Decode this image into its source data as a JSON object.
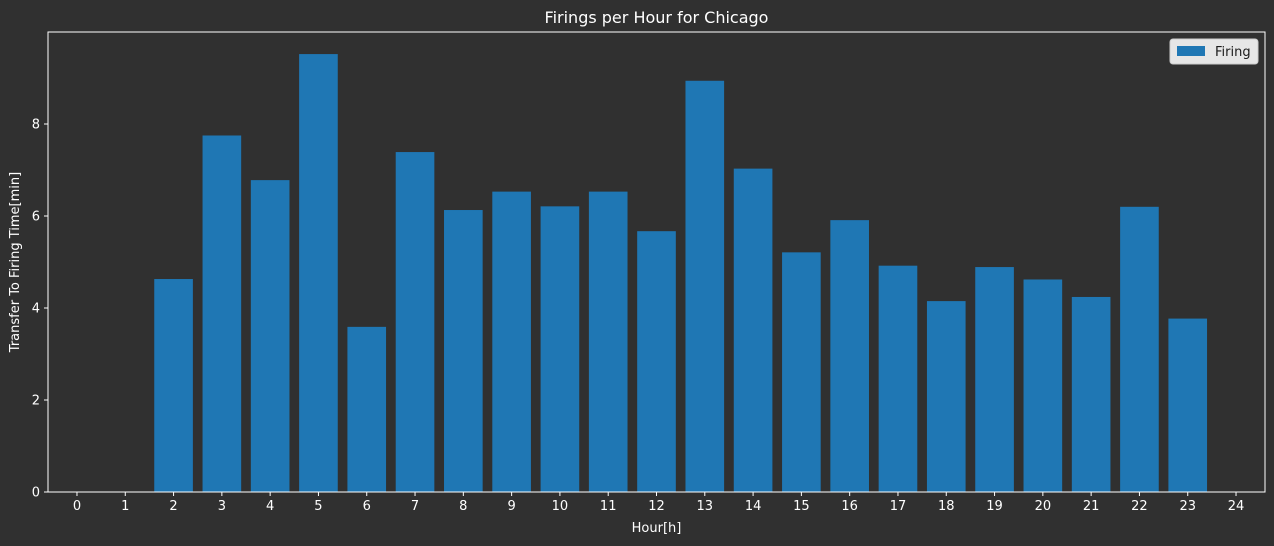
{
  "chart_data": {
    "type": "bar",
    "title": "Firings per Hour for Chicago",
    "xlabel": "Hour[h]",
    "ylabel": "Transfer To Firing Time[min]",
    "xlim": [
      -0.6,
      24.6
    ],
    "ylim": [
      0,
      10
    ],
    "xticks": [
      0,
      1,
      2,
      3,
      4,
      5,
      6,
      7,
      8,
      9,
      10,
      11,
      12,
      13,
      14,
      15,
      16,
      17,
      18,
      19,
      20,
      21,
      22,
      23,
      24
    ],
    "yticks": [
      0,
      2,
      4,
      6,
      8
    ],
    "grid": false,
    "legend_position": "top-right",
    "bar_width": 0.8,
    "series": [
      {
        "name": "Firing",
        "color": "#1f77b4",
        "x": [
          2,
          3,
          4,
          5,
          6,
          7,
          8,
          9,
          10,
          11,
          12,
          13,
          14,
          15,
          16,
          17,
          18,
          19,
          20,
          21,
          22,
          23
        ],
        "values": [
          4.63,
          7.75,
          6.78,
          9.52,
          3.59,
          7.39,
          6.13,
          6.53,
          6.21,
          6.53,
          5.67,
          8.94,
          7.03,
          5.21,
          5.91,
          4.92,
          4.15,
          4.89,
          4.62,
          4.24,
          6.2,
          3.77
        ]
      }
    ]
  },
  "colors": {
    "background": "#303030",
    "axes": "#ffffff",
    "text": "#ffffff",
    "legend_bg": "#e6e6e6"
  }
}
